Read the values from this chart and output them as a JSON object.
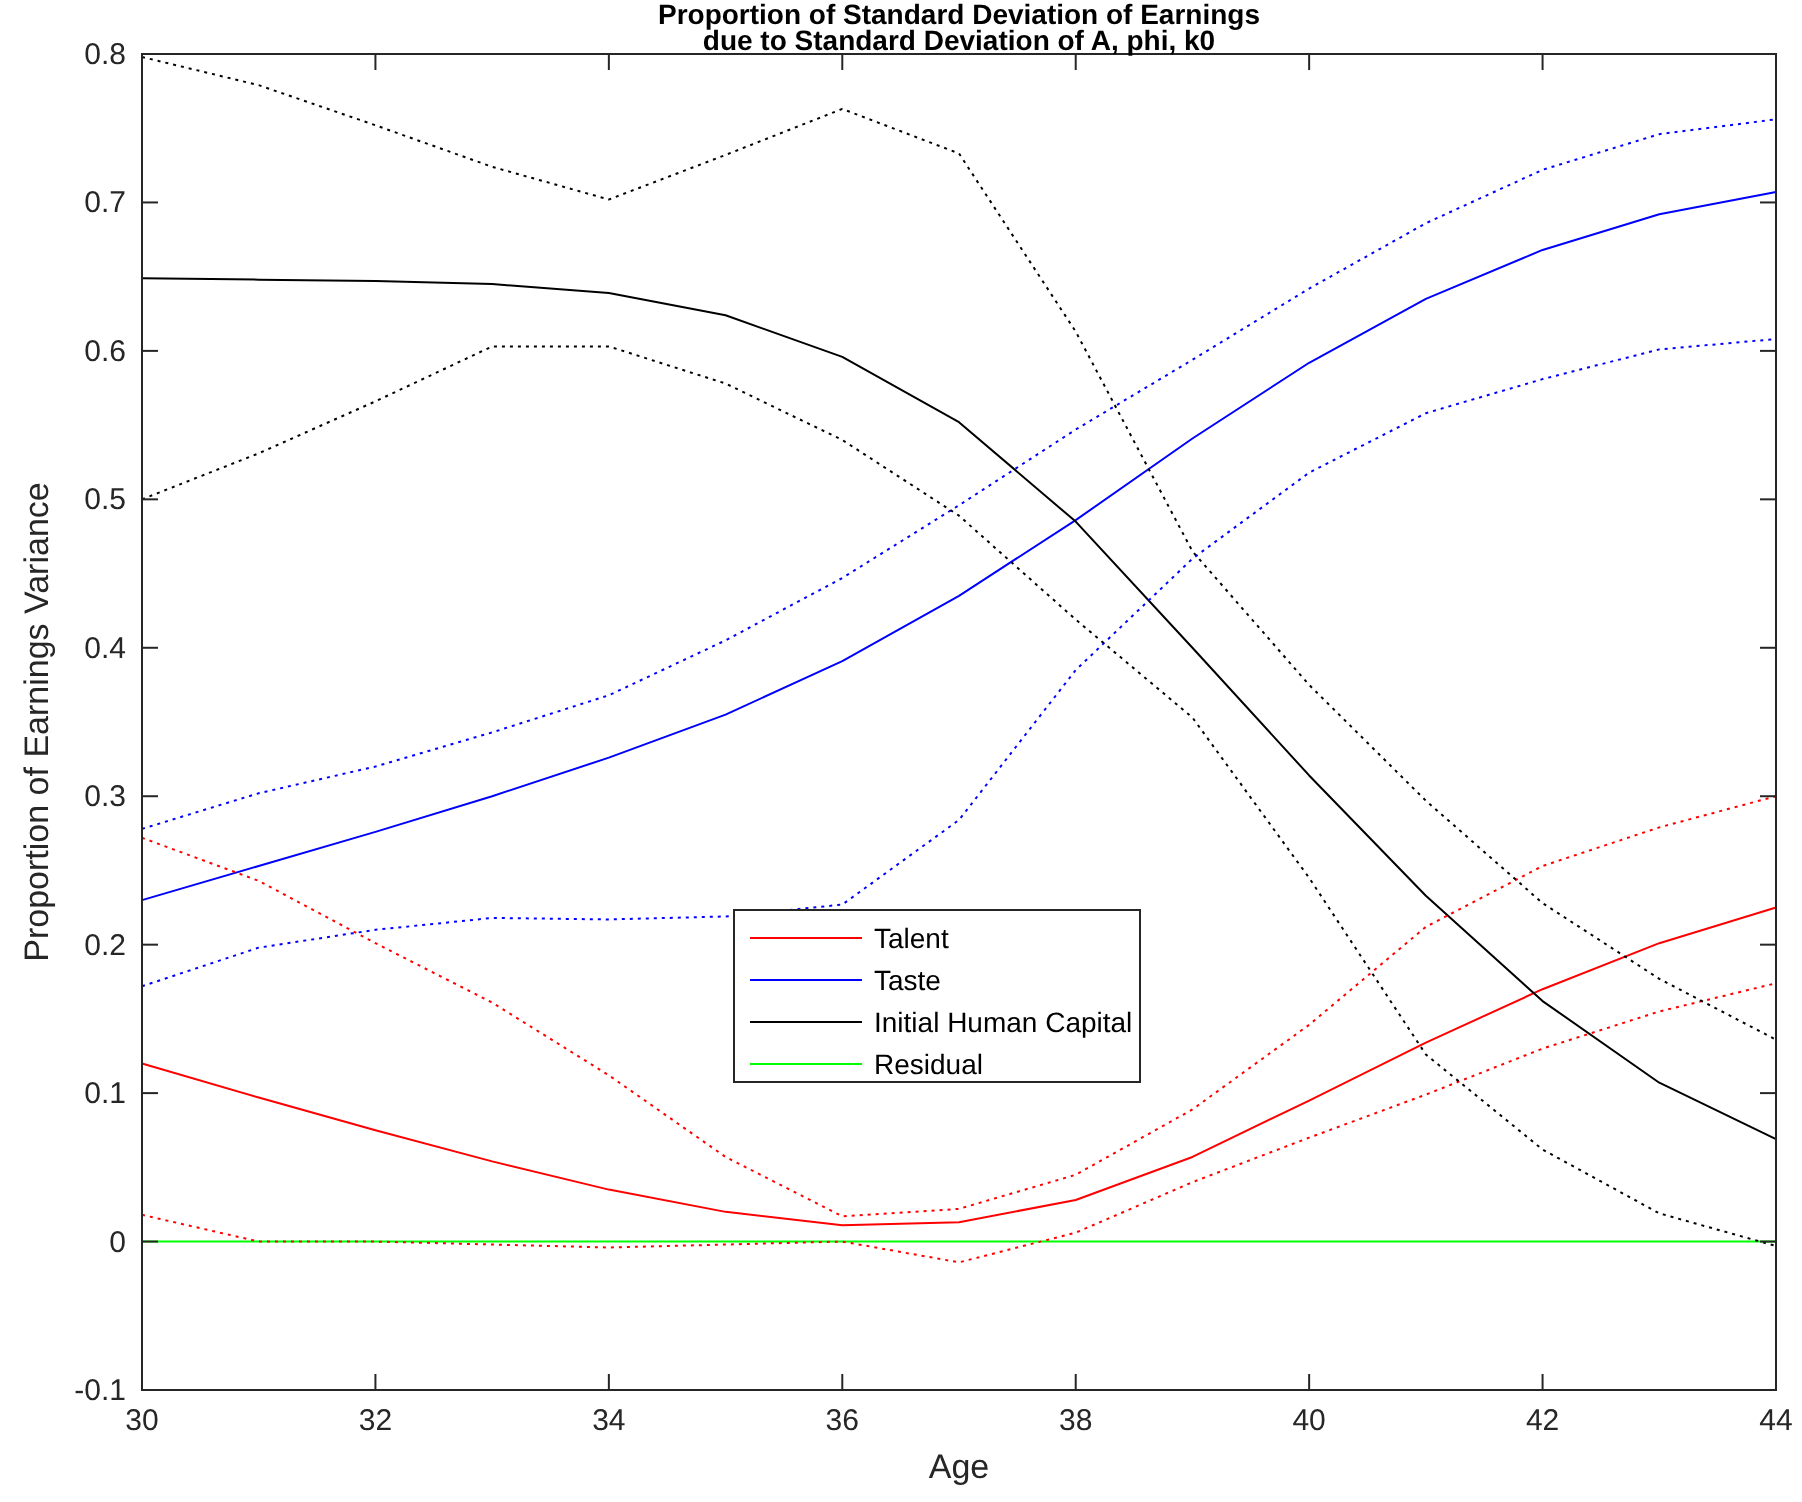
{
  "chart_data": {
    "type": "line",
    "title": "Proportion of Standard Deviation of Earnings\ndue to Standard Deviation of A, phi, k0",
    "xlabel": "Age",
    "ylabel": "Proportion of Earnings Variance",
    "x": [
      30,
      31,
      32,
      33,
      34,
      35,
      36,
      37,
      38,
      39,
      40,
      41,
      42,
      43,
      44
    ],
    "xlim": [
      30,
      44
    ],
    "xticks": [
      30,
      32,
      34,
      36,
      38,
      40,
      42,
      44
    ],
    "ylim": [
      -0.1,
      0.8
    ],
    "yticks": [
      -0.1,
      0,
      0.1,
      0.2,
      0.3,
      0.4,
      0.5,
      0.6,
      0.7,
      0.8
    ],
    "grid": false,
    "legend": "center",
    "marker": "none",
    "line_style": "solid",
    "series": [
      {
        "name": "Talent",
        "color": "#ff0000",
        "values": [
          0.12,
          0.097,
          0.075,
          0.054,
          0.035,
          0.02,
          0.011,
          0.013,
          0.028,
          0.057,
          0.095,
          0.134,
          0.17,
          0.201,
          0.225
        ]
      },
      {
        "name": "Taste",
        "color": "#0000ff",
        "values": [
          0.23,
          0.253,
          0.276,
          0.3,
          0.326,
          0.355,
          0.391,
          0.435,
          0.486,
          0.541,
          0.592,
          0.635,
          0.668,
          0.692,
          0.707
        ]
      },
      {
        "name": "Initial Human Capital",
        "color": "#000000",
        "values": [
          0.649,
          0.648,
          0.647,
          0.645,
          0.639,
          0.624,
          0.596,
          0.552,
          0.485,
          0.4,
          0.314,
          0.233,
          0.162,
          0.107,
          0.069
        ]
      },
      {
        "name": "Residual",
        "color": "#00ff00",
        "values": [
          0,
          0,
          0,
          0,
          0,
          0,
          0,
          0,
          0,
          0,
          0,
          0,
          0,
          0,
          0
        ]
      },
      {
        "color": "#ff0000",
        "line_style": "dotted",
        "values": [
          0.018,
          0,
          0,
          -0.002,
          -0.004,
          -0.002,
          0,
          -0.014,
          0.006,
          0.04,
          0.07,
          0.099,
          0.13,
          0.155,
          0.174
        ]
      },
      {
        "color": "#ff0000",
        "line_style": "dotted",
        "values": [
          0.272,
          0.243,
          0.201,
          0.161,
          0.112,
          0.057,
          0.017,
          0.022,
          0.045,
          0.089,
          0.146,
          0.212,
          0.253,
          0.279,
          0.3
        ]
      },
      {
        "color": "#0000ff",
        "line_style": "dotted",
        "values": [
          0.172,
          0.198,
          0.21,
          0.218,
          0.217,
          0.219,
          0.227,
          0.284,
          0.385,
          0.46,
          0.518,
          0.558,
          0.581,
          0.601,
          0.608
        ]
      },
      {
        "color": "#0000ff",
        "line_style": "dotted",
        "values": [
          0.278,
          0.302,
          0.32,
          0.343,
          0.368,
          0.405,
          0.447,
          0.496,
          0.547,
          0.594,
          0.642,
          0.686,
          0.722,
          0.746,
          0.756
        ]
      },
      {
        "color": "#000000",
        "line_style": "dotted",
        "values": [
          0.5,
          0.531,
          0.566,
          0.603,
          0.603,
          0.578,
          0.54,
          0.489,
          0.419,
          0.353,
          0.245,
          0.126,
          0.062,
          0.019,
          -0.003
        ]
      },
      {
        "color": "#000000",
        "line_style": "dotted",
        "values": [
          0.798,
          0.779,
          0.752,
          0.724,
          0.702,
          0.732,
          0.763,
          0.733,
          0.613,
          0.465,
          0.375,
          0.297,
          0.228,
          0.177,
          0.136
        ]
      }
    ]
  }
}
